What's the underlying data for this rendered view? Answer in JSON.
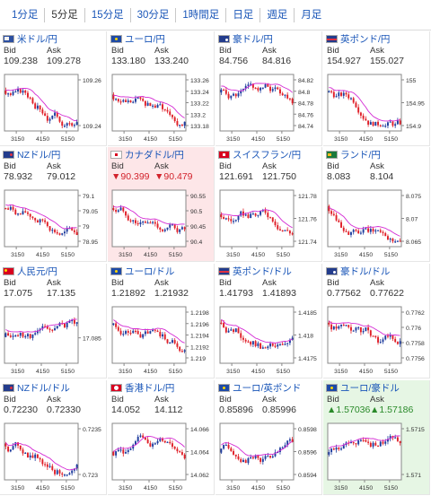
{
  "tabs": [
    "1分足",
    "5分足",
    "15分足",
    "30分足",
    "1時間足",
    "日足",
    "週足",
    "月足"
  ],
  "active_tab": 1,
  "bid_label": "Bid",
  "ask_label": "Ask",
  "x_ticks": [
    "3150",
    "4150",
    "5150"
  ],
  "colors": {
    "link": "#1a56b8",
    "up_candle": "#1e3c9e",
    "down_candle": "#e01f28",
    "ma_line": "#d42bd4",
    "down_text": "#d2222b",
    "up_text": "#2a8a2a",
    "pink_bg": "#fde6e8",
    "green_bg": "#e6f6e4"
  },
  "cells": [
    {
      "name": "米ドル/円",
      "flag": "us",
      "bid": "109.238",
      "ask": "109.278",
      "state": "",
      "y_ticks": [
        "109.26",
        "109.24"
      ]
    },
    {
      "name": "ユーロ/円",
      "flag": "eu",
      "bid": "133.180",
      "ask": "133.240",
      "state": "",
      "y_ticks": [
        "133.26",
        "133.24",
        "133.22",
        "133.2",
        "133.18"
      ]
    },
    {
      "name": "豪ドル/円",
      "flag": "au",
      "bid": "84.756",
      "ask": "84.816",
      "state": "",
      "y_ticks": [
        "84.82",
        "84.8",
        "84.78",
        "84.76",
        "84.74"
      ]
    },
    {
      "name": "英ポンド/円",
      "flag": "gb",
      "bid": "154.927",
      "ask": "155.027",
      "state": "",
      "y_ticks": [
        "155",
        "154.95",
        "154.9"
      ]
    },
    {
      "name": "NZドル/円",
      "flag": "nz",
      "bid": "78.932",
      "ask": "79.012",
      "state": "",
      "y_ticks": [
        "79.1",
        "79.05",
        "79",
        "78.95"
      ]
    },
    {
      "name": "カナダドル/円",
      "flag": "ca",
      "bid": "▼90.399",
      "ask": "▼90.479",
      "state": "down",
      "y_ticks": [
        "90.55",
        "90.5",
        "90.45",
        "90.4"
      ]
    },
    {
      "name": "スイスフラン/円",
      "flag": "ch",
      "bid": "121.691",
      "ask": "121.750",
      "state": "",
      "y_ticks": [
        "121.78",
        "121.76",
        "121.74"
      ]
    },
    {
      "name": "ランド/円",
      "flag": "za",
      "bid": "8.083",
      "ask": "8.104",
      "state": "",
      "y_ticks": [
        "8.075",
        "8.07",
        "8.065"
      ]
    },
    {
      "name": "人民元/円",
      "flag": "cn",
      "bid": "17.075",
      "ask": "17.135",
      "state": "",
      "y_ticks": [
        "17.085"
      ]
    },
    {
      "name": "ユーロ/ドル",
      "flag": "eu",
      "bid": "1.21892",
      "ask": "1.21932",
      "state": "",
      "y_ticks": [
        "1.2198",
        "1.2196",
        "1.2194",
        "1.2192",
        "1.219"
      ]
    },
    {
      "name": "英ポンド/ドル",
      "flag": "gb",
      "bid": "1.41793",
      "ask": "1.41893",
      "state": "",
      "y_ticks": [
        "1.4185",
        "1.418",
        "1.4175"
      ]
    },
    {
      "name": "豪ドル/ドル",
      "flag": "au",
      "bid": "0.77562",
      "ask": "0.77622",
      "state": "",
      "y_ticks": [
        "0.7762",
        "0.776",
        "0.7758",
        "0.7756"
      ]
    },
    {
      "name": "NZドル/ドル",
      "flag": "nz",
      "bid": "0.72230",
      "ask": "0.72330",
      "state": "",
      "y_ticks": [
        "0.7235",
        "0.723"
      ]
    },
    {
      "name": "香港ドル/円",
      "flag": "hk",
      "bid": "14.052",
      "ask": "14.112",
      "state": "",
      "y_ticks": [
        "14.066",
        "14.064",
        "14.062"
      ]
    },
    {
      "name": "ユーロ/英ポンド",
      "flag": "eu",
      "bid": "0.85896",
      "ask": "0.85996",
      "state": "",
      "y_ticks": [
        "0.8598",
        "0.8596",
        "0.8594"
      ]
    },
    {
      "name": "ユーロ/豪ドル",
      "flag": "eu",
      "bid": "▲1.57036",
      "ask": "▲1.57186",
      "state": "up",
      "y_ticks": [
        "1.5715",
        "1.571"
      ]
    }
  ]
}
